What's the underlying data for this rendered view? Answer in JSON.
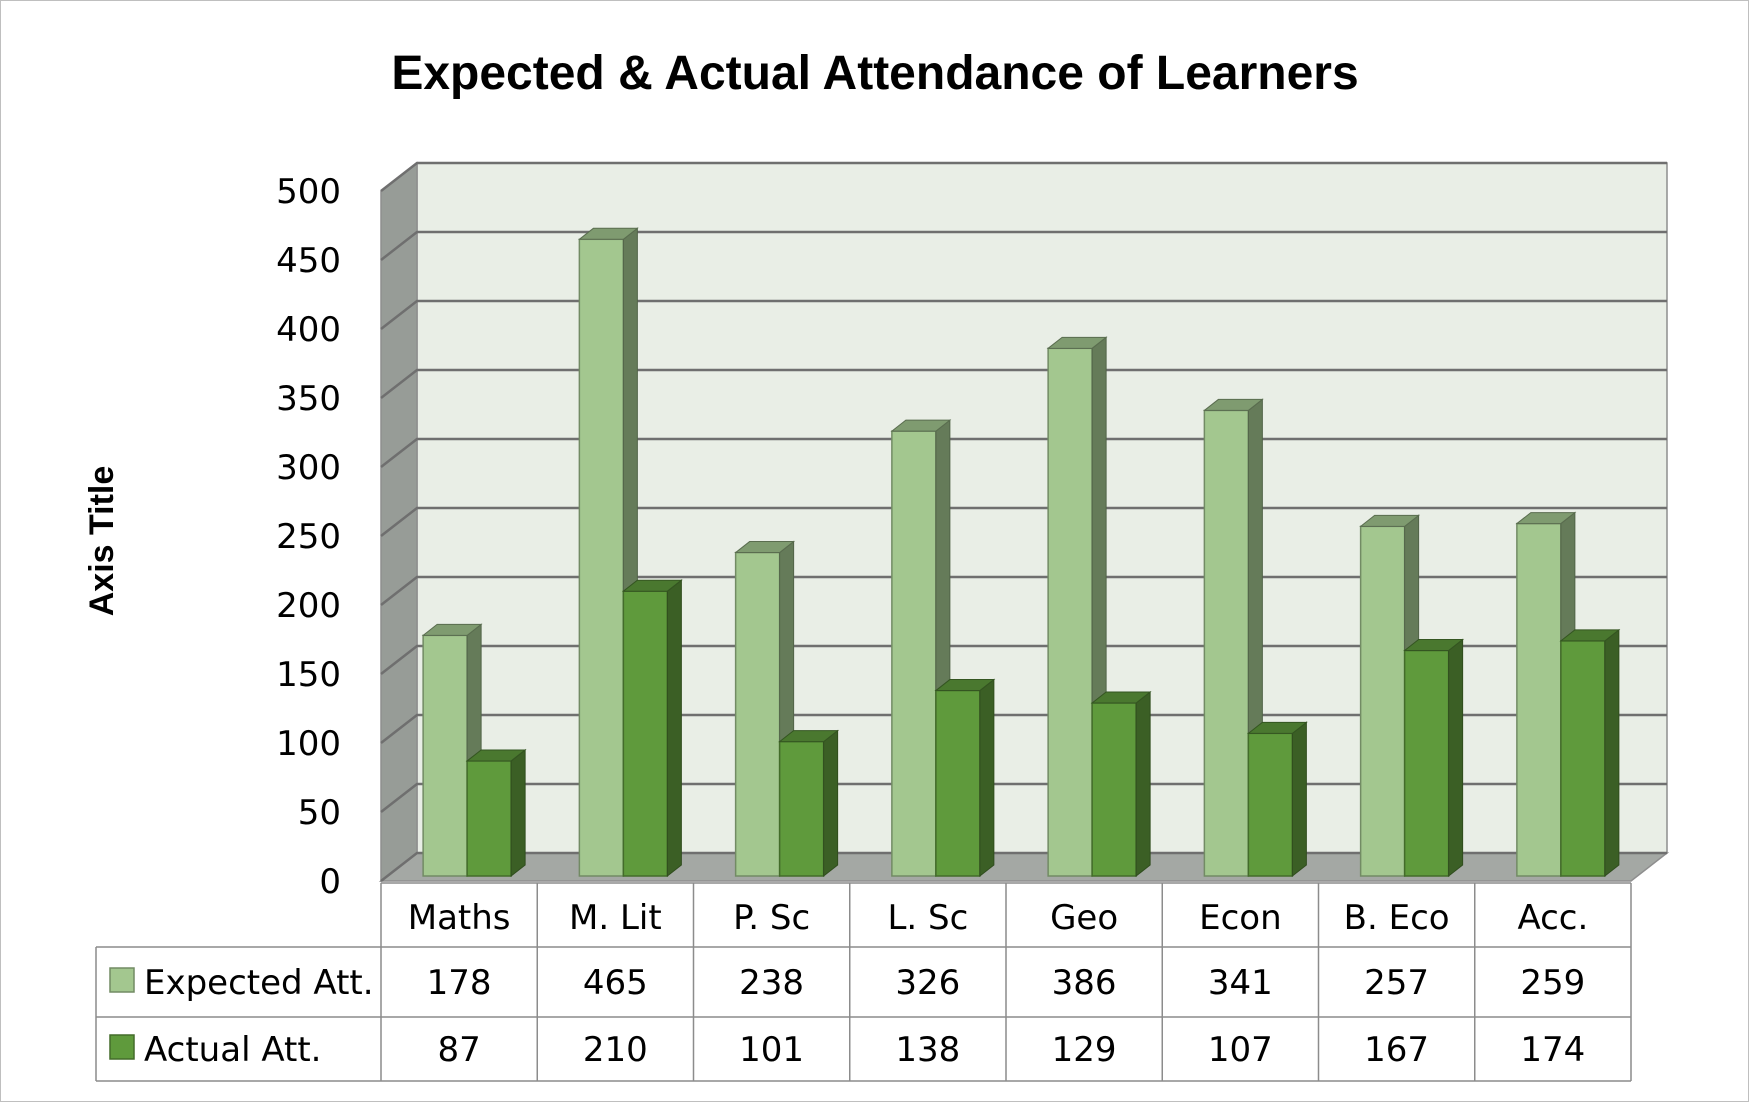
{
  "chart_data": {
    "type": "bar",
    "title": "Expected & Actual Attendance of Learners",
    "ylabel": "Axis Title",
    "xlabel": "",
    "ylim": [
      0,
      500
    ],
    "yticks": [
      0,
      50,
      100,
      150,
      200,
      250,
      300,
      350,
      400,
      450,
      500
    ],
    "grid": true,
    "legend": "data-table",
    "categories": [
      "Maths",
      "M. Lit",
      "P. Sc",
      "L. Sc",
      "Geo",
      "Econ",
      "B. Eco",
      "Acc."
    ],
    "series": [
      {
        "name": "Expected Att.",
        "color": "#a3c78f",
        "values": [
          178,
          465,
          238,
          326,
          386,
          341,
          257,
          259
        ]
      },
      {
        "name": "Actual Att.",
        "color": "#5f9a3c",
        "values": [
          87,
          210,
          101,
          138,
          129,
          107,
          167,
          174
        ]
      }
    ]
  }
}
